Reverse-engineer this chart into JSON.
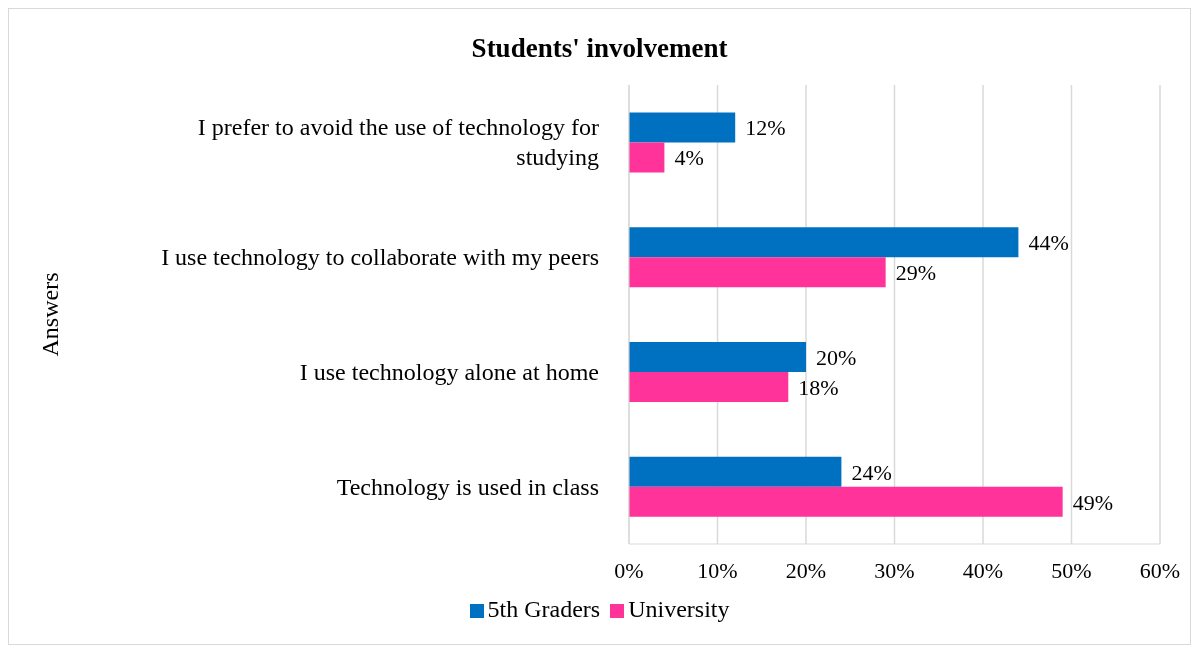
{
  "chart_data": {
    "type": "bar",
    "orientation": "horizontal",
    "title": "Students' involvement",
    "ylabel": "Answers",
    "categories": [
      "I prefer to avoid the use of technology for studying",
      "I use technology to collaborate with my peers",
      "I use technology alone at home",
      "Technology is used in class"
    ],
    "series": [
      {
        "name": "5th Graders",
        "color": "#0070c0",
        "values": [
          12,
          44,
          20,
          24
        ],
        "value_labels": [
          "12%",
          "44%",
          "20%",
          "24%"
        ]
      },
      {
        "name": "University",
        "color": "#ff3399",
        "values": [
          4,
          29,
          18,
          49
        ],
        "value_labels": [
          "4%",
          "29%",
          "18%",
          "49%"
        ]
      }
    ],
    "xlim": [
      0,
      60
    ],
    "xticks": [
      {
        "value": 0,
        "label": "0%"
      },
      {
        "value": 10,
        "label": "10%"
      },
      {
        "value": 20,
        "label": "20%"
      },
      {
        "value": 30,
        "label": "30%"
      },
      {
        "value": 40,
        "label": "40%"
      },
      {
        "value": 50,
        "label": "50%"
      },
      {
        "value": 60,
        "label": "60%"
      }
    ],
    "grid": "x",
    "legend": "bottom"
  }
}
